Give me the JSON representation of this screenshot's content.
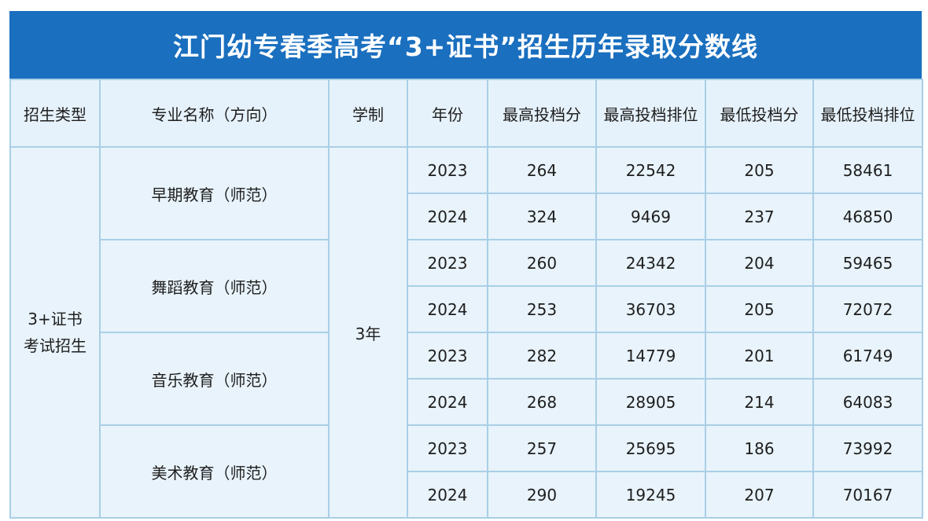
{
  "title": "江门幼专春季高考“3+证书”招生历年录取分数线",
  "headers": {
    "type": "招生类型",
    "major": "专业名称（方向）",
    "duration": "学制",
    "year": "年份",
    "max_score": "最高投档分",
    "max_rank": "最高投档排位",
    "min_score": "最低投档分",
    "min_rank": "最低投档排位"
  },
  "type_label_line1": "3+证书",
  "type_label_line2": "考试招生",
  "duration": "3年",
  "majors": [
    {
      "name": "早期教育（师范）",
      "rows": [
        {
          "year": "2023",
          "max_score": "264",
          "max_rank": "22542",
          "min_score": "205",
          "min_rank": "58461"
        },
        {
          "year": "2024",
          "max_score": "324",
          "max_rank": "9469",
          "min_score": "237",
          "min_rank": "46850"
        }
      ]
    },
    {
      "name": "舞蹈教育（师范）",
      "rows": [
        {
          "year": "2023",
          "max_score": "260",
          "max_rank": "24342",
          "min_score": "204",
          "min_rank": "59465"
        },
        {
          "year": "2024",
          "max_score": "253",
          "max_rank": "36703",
          "min_score": "205",
          "min_rank": "72072"
        }
      ]
    },
    {
      "name": "音乐教育（师范）",
      "rows": [
        {
          "year": "2023",
          "max_score": "282",
          "max_rank": "14779",
          "min_score": "201",
          "min_rank": "61749"
        },
        {
          "year": "2024",
          "max_score": "268",
          "max_rank": "28905",
          "min_score": "214",
          "min_rank": "64083"
        }
      ]
    },
    {
      "name": "美术教育（师范）",
      "rows": [
        {
          "year": "2023",
          "max_score": "257",
          "max_rank": "25695",
          "min_score": "186",
          "min_rank": "73992"
        },
        {
          "year": "2024",
          "max_score": "290",
          "max_rank": "19245",
          "min_score": "207",
          "min_rank": "70167"
        }
      ]
    }
  ],
  "colors": {
    "banner": "#1a6fbf",
    "cell_background": "#e8f3fb",
    "border": "#a9cfe6"
  }
}
